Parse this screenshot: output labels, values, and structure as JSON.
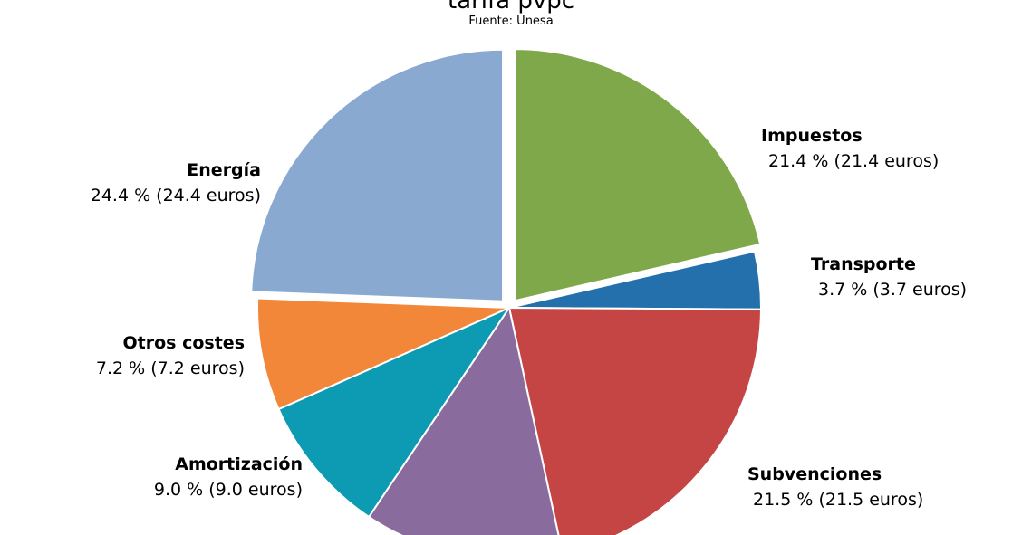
{
  "chart_data": {
    "type": "pie",
    "title": "tarifa pvpc",
    "subtitle": "Fuente: Unesa",
    "slices": [
      {
        "name": "Impuestos",
        "percent": 21.4,
        "value_label": "21.4 % (21.4 euros)",
        "color": "#7fa84a",
        "exploded": true
      },
      {
        "name": "Transporte",
        "percent": 3.7,
        "value_label": "3.7 % (3.7 euros)",
        "color": "#2470ad",
        "exploded": false
      },
      {
        "name": "Subvenciones",
        "percent": 21.5,
        "value_label": "21.5 % (21.5 euros)",
        "color": "#c44543",
        "exploded": false
      },
      {
        "name": "",
        "percent": 12.8,
        "value_label": "",
        "color": "#8a6b9e",
        "exploded": false
      },
      {
        "name": "Amortización",
        "percent": 9.0,
        "value_label": "9.0 % (9.0 euros)",
        "color": "#0d9bb3",
        "exploded": false
      },
      {
        "name": "Otros costes",
        "percent": 7.2,
        "value_label": "7.2 % (7.2 euros)",
        "color": "#f2873a",
        "exploded": false
      },
      {
        "name": "Energía",
        "percent": 24.4,
        "value_label": "24.4 % (24.4 euros)",
        "color": "#8aa9d0",
        "exploded": true
      }
    ]
  }
}
